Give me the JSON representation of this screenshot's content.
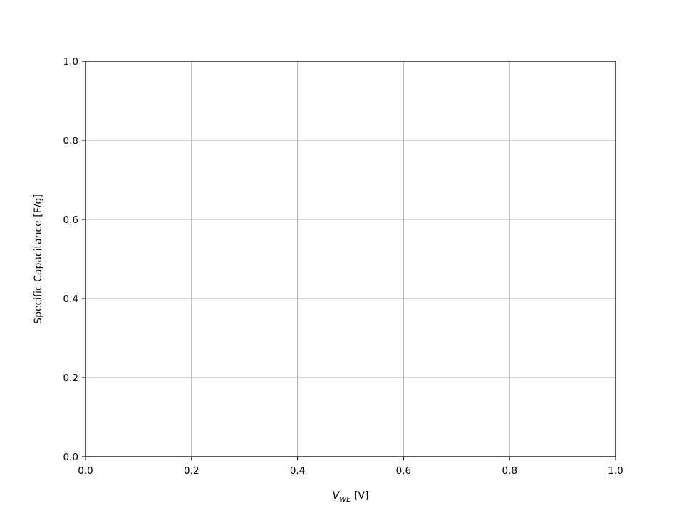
{
  "chart_data": {
    "type": "line",
    "series": [],
    "xlabel": {
      "main": "V",
      "subscript": "WE",
      "unit": " [V]"
    },
    "ylabel": "Specific Capacitance [F/g]",
    "xlim": [
      0.0,
      1.0
    ],
    "ylim": [
      0.0,
      1.0
    ],
    "x_ticks": [
      0.0,
      0.2,
      0.4,
      0.6,
      0.8,
      1.0
    ],
    "y_ticks": [
      0.0,
      0.2,
      0.4,
      0.6,
      0.8,
      1.0
    ],
    "x_tick_labels": [
      "0.0",
      "0.2",
      "0.4",
      "0.6",
      "0.8",
      "1.0"
    ],
    "y_tick_labels": [
      "0.0",
      "0.2",
      "0.4",
      "0.6",
      "0.8",
      "1.0"
    ],
    "grid": true,
    "grid_color": "#b0b0b0"
  }
}
